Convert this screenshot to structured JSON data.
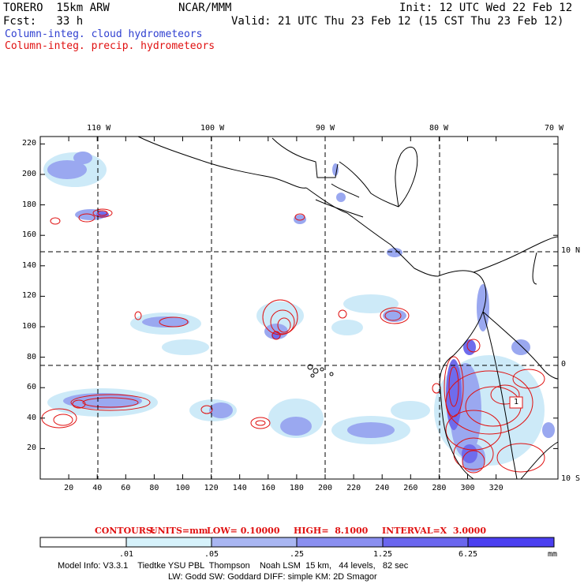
{
  "header": {
    "model": "TORERO  15km ARW",
    "org": "NCAR/MMM",
    "init": "Init: 12 UTC Wed 22 Feb 12",
    "fcst": "Fcst:   33 h",
    "valid": "Valid: 21 UTC Thu 23 Feb 12 (15 CST Thu 23 Feb 12)"
  },
  "legend_fields": {
    "cloud": "Column-integ. cloud hydrometeors",
    "precip": "Column-integ. precip. hydrometeors"
  },
  "axes": {
    "x_ticks": [
      "20",
      "40",
      "60",
      "80",
      "100",
      "120",
      "140",
      "160",
      "180",
      "200",
      "220",
      "240",
      "260",
      "280",
      "300",
      "320"
    ],
    "y_ticks": [
      "20",
      "40",
      "60",
      "80",
      "100",
      "120",
      "140",
      "160",
      "180",
      "200",
      "220"
    ],
    "lon_labels": [
      "110 W",
      "100 W",
      "90 W",
      "80 W",
      "70 W"
    ],
    "lat_labels": [
      "10 N",
      "0",
      "10 S"
    ]
  },
  "map_annotation": "1",
  "contours_line": {
    "prefix": "CONTOURS:",
    "units": "UNITS=mm",
    "low": "LOW= 0.10000",
    "high": "HIGH=  8.1000",
    "interval": "INTERVAL=X  3.0000"
  },
  "colorbar": {
    "labels": [
      ".01",
      ".05",
      ".25",
      "1.25",
      "6.25"
    ],
    "unit": "mm",
    "colors": [
      "#ffffff",
      "#d6f2fb",
      "#a9b6f2",
      "#8a8ff0",
      "#6a66ee",
      "#4b3ff0",
      "#2e22ee"
    ]
  },
  "model_info": {
    "line1": "Model Info: V3.3.1    Tiedtke YSU PBL  Thompson    Noah LSM  15 km,   44 levels,   82 sec",
    "line2": "LW: Godd SW: Goddard DIFF: simple KM: 2D Smagor"
  }
}
